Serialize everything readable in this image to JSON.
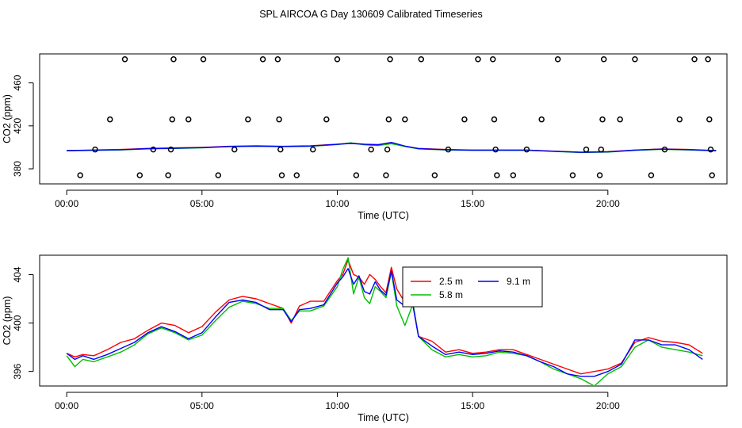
{
  "figure": {
    "title": "SPL AIRCOA G  Day 130609  Calibrated Timeseries"
  },
  "chart_data": [
    {
      "type": "scatter",
      "xlabel": "Time (UTC)",
      "ylabel": "CO2 (ppm)",
      "xlim": [
        -1,
        24.4
      ],
      "ylim": [
        366,
        487
      ],
      "x_ticks": [
        0,
        5,
        10,
        15,
        20
      ],
      "x_tick_labels": [
        "00:00",
        "05:00",
        "10:00",
        "15:00",
        "20:00"
      ],
      "y_ticks": [
        380,
        420,
        460
      ],
      "y_tick_labels": [
        "380",
        "420",
        "460"
      ],
      "reference_points": [
        {
          "x": 0.5,
          "y": 374
        },
        {
          "x": 1.05,
          "y": 398
        },
        {
          "x": 1.6,
          "y": 426
        },
        {
          "x": 2.15,
          "y": 482
        },
        {
          "x": 2.7,
          "y": 374
        },
        {
          "x": 3.2,
          "y": 398
        },
        {
          "x": 3.75,
          "y": 374
        },
        {
          "x": 3.85,
          "y": 398
        },
        {
          "x": 3.9,
          "y": 426
        },
        {
          "x": 3.95,
          "y": 482
        },
        {
          "x": 4.5,
          "y": 426
        },
        {
          "x": 5.05,
          "y": 482
        },
        {
          "x": 5.6,
          "y": 374
        },
        {
          "x": 6.2,
          "y": 398
        },
        {
          "x": 6.7,
          "y": 426
        },
        {
          "x": 7.25,
          "y": 482
        },
        {
          "x": 7.8,
          "y": 482
        },
        {
          "x": 7.85,
          "y": 426
        },
        {
          "x": 7.9,
          "y": 398
        },
        {
          "x": 7.95,
          "y": 374
        },
        {
          "x": 8.5,
          "y": 374
        },
        {
          "x": 9.1,
          "y": 398
        },
        {
          "x": 9.6,
          "y": 426
        },
        {
          "x": 10.0,
          "y": 482
        },
        {
          "x": 10.7,
          "y": 374
        },
        {
          "x": 11.25,
          "y": 398
        },
        {
          "x": 11.8,
          "y": 374
        },
        {
          "x": 11.85,
          "y": 398
        },
        {
          "x": 11.9,
          "y": 426
        },
        {
          "x": 11.95,
          "y": 482
        },
        {
          "x": 12.5,
          "y": 426
        },
        {
          "x": 13.1,
          "y": 482
        },
        {
          "x": 13.6,
          "y": 374
        },
        {
          "x": 14.1,
          "y": 398
        },
        {
          "x": 14.7,
          "y": 426
        },
        {
          "x": 15.2,
          "y": 482
        },
        {
          "x": 15.75,
          "y": 482
        },
        {
          "x": 15.8,
          "y": 426
        },
        {
          "x": 15.85,
          "y": 398
        },
        {
          "x": 15.9,
          "y": 374
        },
        {
          "x": 16.5,
          "y": 374
        },
        {
          "x": 17.0,
          "y": 398
        },
        {
          "x": 17.55,
          "y": 426
        },
        {
          "x": 18.15,
          "y": 482
        },
        {
          "x": 18.7,
          "y": 374
        },
        {
          "x": 19.2,
          "y": 398
        },
        {
          "x": 19.7,
          "y": 374
        },
        {
          "x": 19.75,
          "y": 398
        },
        {
          "x": 19.8,
          "y": 426
        },
        {
          "x": 19.85,
          "y": 482
        },
        {
          "x": 20.45,
          "y": 426
        },
        {
          "x": 21.0,
          "y": 482
        },
        {
          "x": 21.6,
          "y": 374
        },
        {
          "x": 22.1,
          "y": 398
        },
        {
          "x": 22.65,
          "y": 426
        },
        {
          "x": 23.2,
          "y": 482
        },
        {
          "x": 23.7,
          "y": 482
        },
        {
          "x": 23.75,
          "y": 426
        },
        {
          "x": 23.8,
          "y": 398
        },
        {
          "x": 23.85,
          "y": 374
        }
      ],
      "series": [
        {
          "name": "2.5 m",
          "color": "#ff0000",
          "x": [
            0,
            1,
            2,
            3,
            4,
            5,
            6,
            7,
            8,
            9,
            10,
            10.5,
            11,
            11.5,
            12,
            12.5,
            13,
            14,
            15,
            16,
            17,
            18,
            19,
            20,
            21,
            22,
            23,
            24
          ],
          "y": [
            397,
            397.5,
            398,
            399,
            399.5,
            400,
            401,
            401.5,
            401,
            401.5,
            403,
            404,
            403,
            402.5,
            404,
            401,
            399,
            398,
            397.5,
            397.5,
            397.5,
            396.5,
            395.5,
            396,
            397.5,
            398.5,
            398,
            397
          ]
        },
        {
          "name": "5.8 m",
          "color": "#00c000",
          "x": [
            0,
            1,
            2,
            3,
            4,
            5,
            6,
            7,
            8,
            9,
            10,
            10.5,
            11,
            11.5,
            12,
            12.5,
            13,
            14,
            15,
            16,
            17,
            18,
            19,
            20,
            21,
            22,
            23,
            24
          ],
          "y": [
            396.8,
            397.2,
            397.6,
            398.6,
            399,
            399.6,
            400.6,
            401,
            400.6,
            401,
            402.6,
            404.2,
            402.4,
            401.6,
            403.4,
            400.8,
            398.6,
            397.6,
            397.2,
            397.2,
            397.2,
            396.2,
            395.2,
            395.6,
            397.2,
            398.2,
            397.6,
            396.8
          ]
        },
        {
          "name": "9.1 m",
          "color": "#0000ff",
          "x": [
            0,
            1,
            2,
            3,
            4,
            5,
            6,
            7,
            8,
            9,
            10,
            10.5,
            11,
            11.5,
            12,
            12.5,
            13,
            14,
            15,
            16,
            17,
            18,
            19,
            20,
            21,
            22,
            23,
            24
          ],
          "y": [
            397,
            397.4,
            397.8,
            398.8,
            399.2,
            399.8,
            400.8,
            401.2,
            400.8,
            401.2,
            402.8,
            403.6,
            402.8,
            402.4,
            404.6,
            401.2,
            398.8,
            397.8,
            397.4,
            397.4,
            397.4,
            396.4,
            395.4,
            395.8,
            397.4,
            398.4,
            397.8,
            397
          ]
        }
      ]
    },
    {
      "type": "line",
      "xlabel": "Time (UTC)",
      "ylabel": "CO2 (ppm)",
      "xlim": [
        -1,
        24.4
      ],
      "ylim": [
        394.8,
        405.6
      ],
      "x_ticks": [
        0,
        5,
        10,
        15,
        20
      ],
      "x_tick_labels": [
        "00:00",
        "05:00",
        "10:00",
        "15:00",
        "20:00"
      ],
      "y_ticks": [
        396,
        400,
        404
      ],
      "y_tick_labels": [
        "396",
        "400",
        "404"
      ],
      "legend": {
        "position": "top-right",
        "entries": [
          "2.5 m",
          "5.8 m",
          "9.1 m"
        ]
      },
      "series": [
        {
          "name": "2.5 m",
          "color": "#ff0000",
          "x": [
            0,
            0.3,
            0.6,
            1,
            1.5,
            2,
            2.5,
            3,
            3.5,
            4,
            4.5,
            5,
            5.5,
            6,
            6.5,
            7,
            7.5,
            8,
            8.3,
            8.6,
            9,
            9.5,
            10,
            10.2,
            10.4,
            10.6,
            10.8,
            11,
            11.2,
            11.4,
            11.6,
            11.8,
            12,
            12.2,
            12.5,
            12.8,
            13,
            13.5,
            14,
            14.5,
            15,
            15.5,
            16,
            16.5,
            17,
            17.5,
            18,
            18.5,
            19,
            19.5,
            20,
            20.5,
            21,
            21.5,
            22,
            22.5,
            23,
            23.5
          ],
          "y": [
            397.5,
            397.2,
            397.4,
            397.3,
            397.8,
            398.4,
            398.7,
            399.4,
            400.0,
            399.8,
            399.2,
            399.7,
            400.9,
            401.9,
            402.2,
            402.0,
            401.6,
            401.2,
            400.0,
            401.4,
            401.8,
            401.8,
            403.5,
            404.0,
            405.2,
            404.0,
            403.8,
            403.2,
            404.0,
            403.6,
            403.0,
            402.5,
            404.6,
            402.8,
            401.7,
            401.6,
            398.9,
            398.5,
            397.6,
            397.8,
            397.5,
            397.6,
            397.8,
            397.8,
            397.4,
            397.0,
            396.6,
            396.2,
            395.8,
            396.0,
            396.2,
            396.7,
            398.4,
            398.8,
            398.5,
            398.4,
            398.2,
            397.5
          ]
        },
        {
          "name": "5.8 m",
          "color": "#00c000",
          "x": [
            0,
            0.3,
            0.6,
            1,
            1.5,
            2,
            2.5,
            3,
            3.5,
            4,
            4.5,
            5,
            5.5,
            6,
            6.5,
            7,
            7.5,
            8,
            8.3,
            8.6,
            9,
            9.5,
            10,
            10.2,
            10.4,
            10.6,
            10.8,
            11,
            11.2,
            11.4,
            11.6,
            11.8,
            12,
            12.2,
            12.5,
            12.8,
            13,
            13.5,
            14,
            14.5,
            15,
            15.5,
            16,
            16.5,
            17,
            17.5,
            18,
            18.5,
            19,
            19.5,
            20,
            20.5,
            21,
            21.5,
            22,
            22.5,
            23,
            23.5
          ],
          "y": [
            397.3,
            396.4,
            397.0,
            396.8,
            397.2,
            397.6,
            398.2,
            399.1,
            399.6,
            399.2,
            398.6,
            399.0,
            400.2,
            401.3,
            401.8,
            401.6,
            401.2,
            401.2,
            400.2,
            401.0,
            401.0,
            401.4,
            403.0,
            404.4,
            405.4,
            402.4,
            403.8,
            402.1,
            401.6,
            403.0,
            402.6,
            402.1,
            404.2,
            401.4,
            399.8,
            401.6,
            398.9,
            397.8,
            397.2,
            397.4,
            397.2,
            397.3,
            397.6,
            397.5,
            397.3,
            396.8,
            396.2,
            395.8,
            395.4,
            394.8,
            395.8,
            396.4,
            398.0,
            398.6,
            398.0,
            397.8,
            397.6,
            397.3
          ]
        },
        {
          "name": "9.1 m",
          "color": "#0000ff",
          "x": [
            0,
            0.3,
            0.6,
            1,
            1.5,
            2,
            2.5,
            3,
            3.5,
            4,
            4.5,
            5,
            5.5,
            6,
            6.5,
            7,
            7.5,
            8,
            8.3,
            8.6,
            9,
            9.5,
            10,
            10.2,
            10.4,
            10.6,
            10.8,
            11,
            11.2,
            11.4,
            11.6,
            11.8,
            12,
            12.2,
            12.5,
            12.8,
            13,
            13.5,
            14,
            14.5,
            15,
            15.5,
            16,
            16.5,
            17,
            17.5,
            18,
            18.5,
            19,
            19.5,
            20,
            20.5,
            21,
            21.5,
            22,
            22.5,
            23,
            23.5
          ],
          "y": [
            397.5,
            397.0,
            397.3,
            397.0,
            397.4,
            397.9,
            398.4,
            399.2,
            399.7,
            399.3,
            398.7,
            399.2,
            400.5,
            401.7,
            401.9,
            401.7,
            401.1,
            401.1,
            400.1,
            401.1,
            401.2,
            401.5,
            403.3,
            403.8,
            404.5,
            403.2,
            403.9,
            402.6,
            402.4,
            403.4,
            402.7,
            402.3,
            404.3,
            401.9,
            401.4,
            401.4,
            398.9,
            398.1,
            397.4,
            397.6,
            397.4,
            397.5,
            397.7,
            397.6,
            397.3,
            396.8,
            396.4,
            395.8,
            395.6,
            395.6,
            396.0,
            396.6,
            398.6,
            398.6,
            398.2,
            398.2,
            397.8,
            397.0
          ]
        }
      ]
    }
  ]
}
